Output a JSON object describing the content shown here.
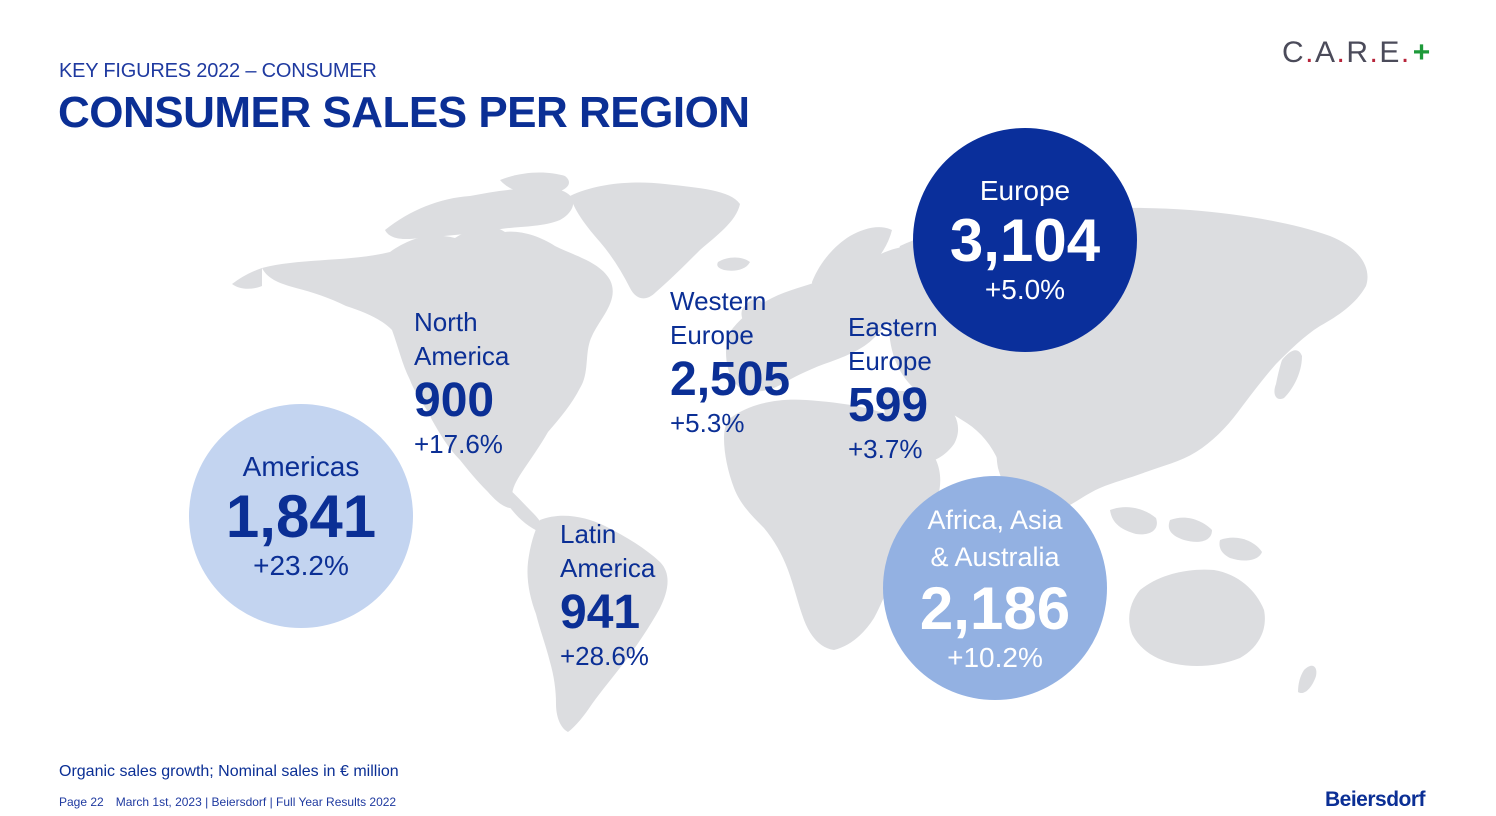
{
  "header": {
    "subtitle": "KEY FIGURES 2022 – CONSUMER",
    "title": "CONSUMER SALES PER REGION"
  },
  "logo": {
    "letters": [
      "C",
      "A",
      "R",
      "E"
    ],
    "dot": ".",
    "plus": "+"
  },
  "regions": {
    "north_america": {
      "label_line1": "North",
      "label_line2": "America",
      "value": "900",
      "growth": "+17.6%"
    },
    "latin_america": {
      "label_line1": "Latin",
      "label_line2": "America",
      "value": "941",
      "growth": "+28.6%"
    },
    "western_europe": {
      "label_line1": "Western",
      "label_line2": "Europe",
      "value": "2,505",
      "growth": "+5.3%"
    },
    "eastern_europe": {
      "label_line1": "Eastern",
      "label_line2": "Europe",
      "value": "599",
      "growth": "+3.7%"
    }
  },
  "circles": {
    "americas": {
      "label": "Americas",
      "value": "1,841",
      "growth": "+23.2%"
    },
    "europe": {
      "label": "Europe",
      "value": "3,104",
      "growth": "+5.0%"
    },
    "africa_asia_australia": {
      "label_line1": "Africa, Asia",
      "label_line2": "& Australia",
      "value": "2,186",
      "growth": "+10.2%"
    }
  },
  "footnote": "Organic sales growth; Nominal sales in € million",
  "footer": {
    "page": "Page 22",
    "info": "March 1st, 2023 | Beiersdorf | Full Year Results 2022"
  },
  "brand": "Beiersdorf",
  "colors": {
    "primary_blue": "#0b2f95",
    "europe_circle": "#0a2f9b",
    "americas_circle": "#c3d4f0",
    "aaa_circle": "#93b1e2",
    "map_gray": "#dcdde0",
    "logo_red": "#b7243a",
    "logo_green": "#1e9a3a"
  }
}
